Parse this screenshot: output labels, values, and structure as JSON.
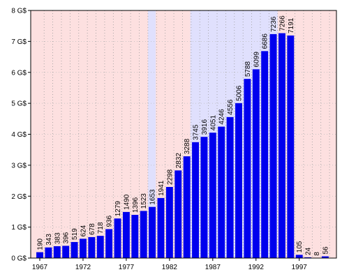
{
  "chart_data": {
    "type": "bar",
    "x": [
      1967,
      1968,
      1969,
      1970,
      1971,
      1972,
      1973,
      1974,
      1975,
      1976,
      1977,
      1978,
      1979,
      1980,
      1981,
      1982,
      1983,
      1984,
      1985,
      1986,
      1987,
      1988,
      1989,
      1990,
      1991,
      1992,
      1993,
      1994,
      1995,
      1996,
      1997,
      1998,
      1999,
      2000
    ],
    "values": [
      0.19,
      0.343,
      0.383,
      0.396,
      0.519,
      0.624,
      0.678,
      0.718,
      0.936,
      1.279,
      1.49,
      1.396,
      1.523,
      1.653,
      1.941,
      2.298,
      2.832,
      3.288,
      3.745,
      3.916,
      4.051,
      4.246,
      4.556,
      5.006,
      5.788,
      6.099,
      6.686,
      7.236,
      7.266,
      7.191,
      0.105,
      0.024,
      0.008,
      0.056
    ],
    "value_labels": [
      "190",
      "343",
      "383",
      "396",
      "519",
      "624",
      "678",
      "718",
      "936",
      "1279",
      "1490",
      "1396",
      "1523",
      "1653",
      "1941",
      "2298",
      "2832",
      "3288",
      "3745",
      "3916",
      "4051",
      "4246",
      "4556",
      "5006",
      "5788",
      "6099",
      "6686",
      "7236",
      "7266",
      "7191",
      "105",
      "24",
      "8",
      "56"
    ],
    "color": "#0000ee",
    "background_color": "#fde0e0",
    "bands": [
      {
        "xlim": [
          1979.5,
          1980.4
        ],
        "color": "#e0e0fd"
      },
      {
        "xlim": [
          1984.4,
          1994.5
        ],
        "color": "#e0e0fd"
      }
    ],
    "xlim": [
      1965.95,
      2001.3
    ],
    "xticks": [
      1967,
      1972,
      1977,
      1982,
      1987,
      1992,
      1997
    ],
    "ylim": [
      0,
      8
    ],
    "yticks": [
      {
        "value": 0,
        "label": "0 G$"
      },
      {
        "value": 1,
        "label": "1 G$"
      },
      {
        "value": 2,
        "label": "2 G$"
      },
      {
        "value": 3,
        "label": "3 G$"
      },
      {
        "value": 4,
        "label": "4 G$"
      },
      {
        "value": 5,
        "label": "5 G$"
      },
      {
        "value": 6,
        "label": "6 G$"
      },
      {
        "value": 7,
        "label": "7 G$"
      },
      {
        "value": 8,
        "label": "8 G$"
      }
    ],
    "grid": true
  }
}
